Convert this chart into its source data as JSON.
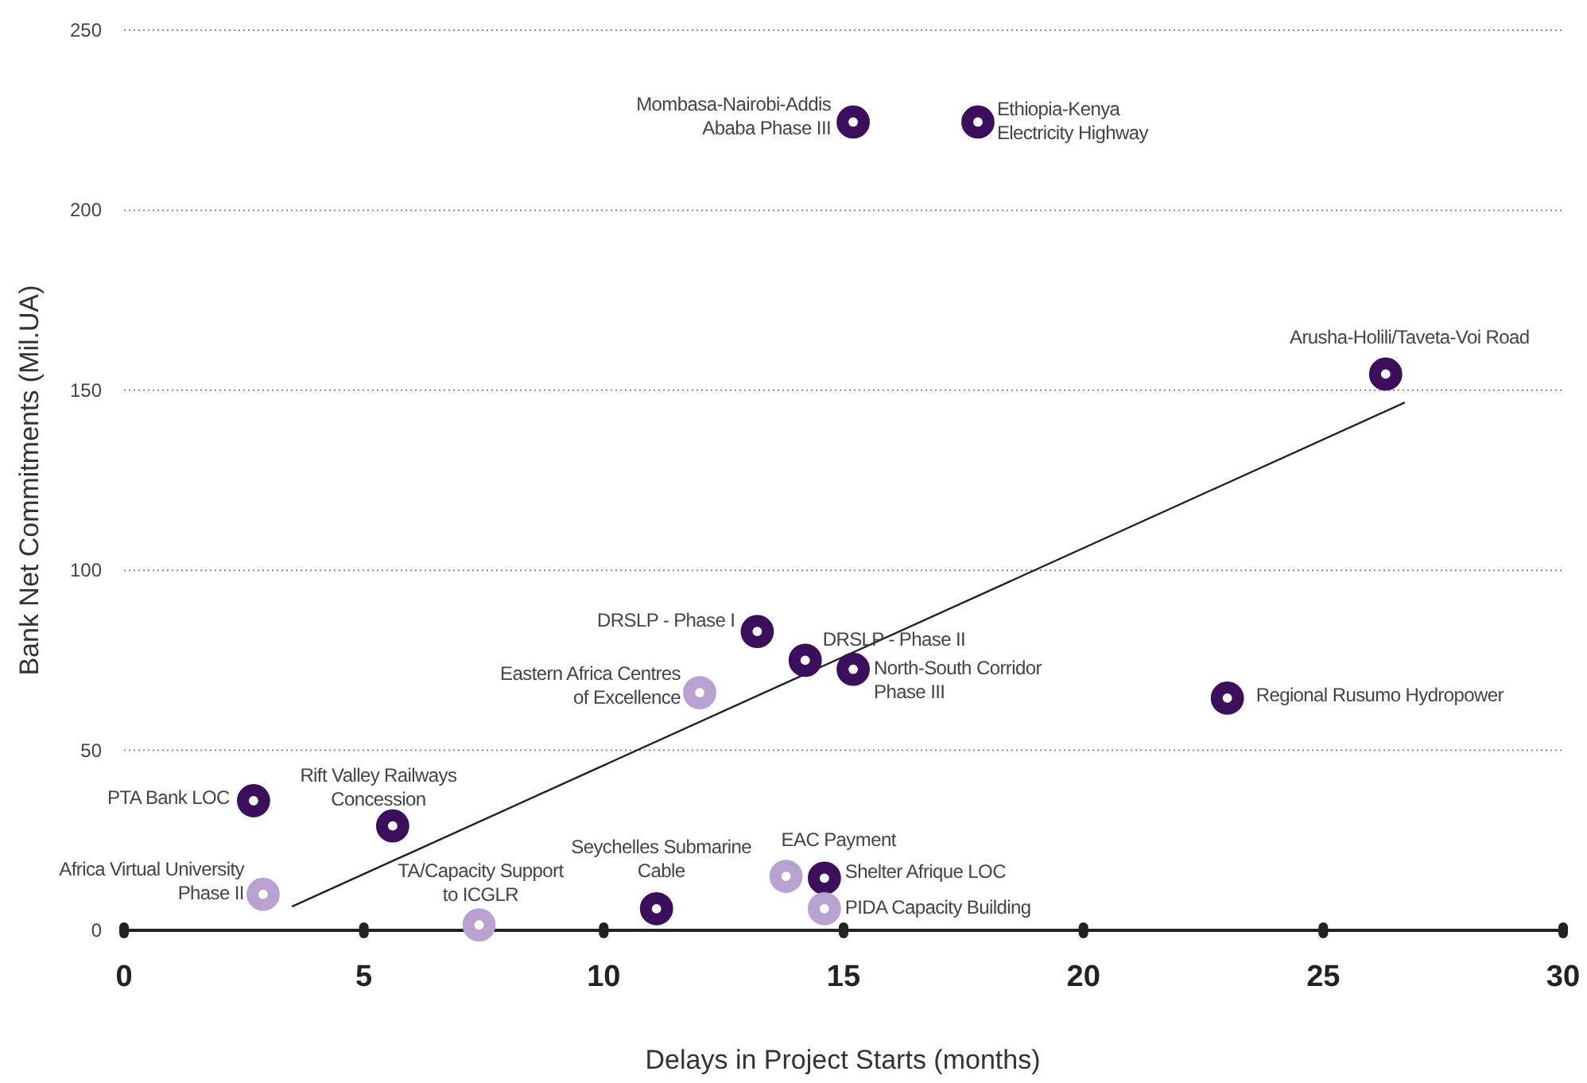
{
  "chart_data": {
    "type": "scatter",
    "xlabel": "Delays in Project Starts (months)",
    "ylabel": "Bank Net Commitments (Mil.UA)",
    "xlim": [
      0,
      30
    ],
    "xticks": [
      0,
      5,
      10,
      15,
      20,
      25,
      30
    ],
    "ylim": [
      0,
      250
    ],
    "yticks": [
      0,
      50,
      100,
      150,
      200,
      250
    ],
    "grid": "y",
    "marker": "circle",
    "series": [
      {
        "color": "#3b0f5c",
        "x": [
          15.2,
          17.8,
          26.3,
          13.2,
          14.2,
          15.2,
          23.0,
          2.7,
          5.6,
          11.1,
          14.6
        ],
        "values": [
          224.5,
          224.5,
          154.5,
          83,
          75,
          72.5,
          64.5,
          36,
          29,
          6,
          14.5
        ]
      },
      {
        "color": "#b9a2d0",
        "x": [
          12.0,
          2.9,
          7.4,
          13.8,
          14.6
        ],
        "values": [
          66,
          10,
          1.5,
          15,
          6
        ]
      },
      {
        "type": "line",
        "marker": "none",
        "color": "#222222",
        "x": [
          3.5,
          26.7
        ],
        "values": [
          6.6,
          146.6
        ]
      }
    ],
    "annotations": [
      {
        "text": "Mombasa-Nairobi-Addis\nAbaba Phase III",
        "x": 15.2,
        "y": 224.5
      },
      {
        "text": "Ethiopia-Kenya\nElectricity Highway",
        "x": 17.8,
        "y": 224.5
      },
      {
        "text": "Arusha-Holili/Taveta-Voi Road",
        "x": 26.3,
        "y": 154.5
      },
      {
        "text": "DRSLP - Phase I",
        "x": 13.2,
        "y": 83
      },
      {
        "text": "DRSLP - Phase II",
        "x": 14.2,
        "y": 75
      },
      {
        "text": "North-South Corridor\nPhase III",
        "x": 15.2,
        "y": 72.5
      },
      {
        "text": "Eastern Africa Centres\nof Excellence",
        "x": 12.0,
        "y": 66
      },
      {
        "text": "Regional Rusumo Hydropower",
        "x": 23.0,
        "y": 64.5
      },
      {
        "text": "PTA Bank LOC",
        "x": 2.7,
        "y": 36
      },
      {
        "text": "Rift Valley Railways\nConcession",
        "x": 5.6,
        "y": 29
      },
      {
        "text": "Africa Virtual University\nPhase II",
        "x": 2.9,
        "y": 10
      },
      {
        "text": "TA/Capacity Support\nto ICGLR",
        "x": 7.4,
        "y": 1.5
      },
      {
        "text": "Seychelles Submarine\nCable",
        "x": 11.1,
        "y": 6
      },
      {
        "text": "EAC Payment",
        "x": 13.8,
        "y": 15
      },
      {
        "text": "Shelter Afrique LOC",
        "x": 14.6,
        "y": 14.5
      },
      {
        "text": "PIDA Capacity Building",
        "x": 14.6,
        "y": 6
      }
    ]
  }
}
